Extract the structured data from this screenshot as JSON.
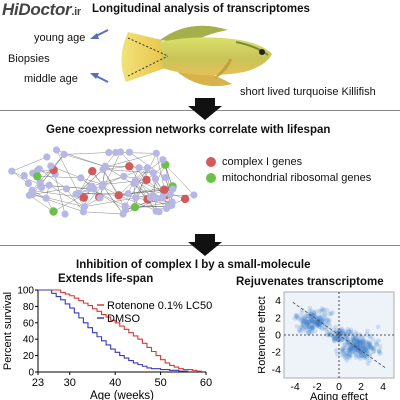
{
  "watermark": {
    "brand": "HiDoctor",
    "suffix": ".ir"
  },
  "panel1": {
    "title": "Longitudinal analysis of transcriptomes",
    "young_label": "young age",
    "biopsies_label": "Biopsies",
    "middle_label": "middle age",
    "fish_caption": "short lived turquoise Killifish"
  },
  "panel2": {
    "title": "Gene coexpression networks correlate with lifespan",
    "legend": [
      {
        "label": "complex I genes",
        "color": "#d35a5a"
      },
      {
        "label": "mitochondrial ribosomal genes",
        "color": "#6cc04a"
      }
    ],
    "node_color": "#b7b7e6"
  },
  "panel3": {
    "title": "Inhibition of complex I by a small-molecule",
    "left_title": "Extends life-span",
    "right_title": "Rejuvenates transcriptome"
  },
  "chart_data": [
    {
      "type": "line",
      "title": "Extends life-span",
      "xlabel": "Age (weeks)",
      "ylabel": "Percent survival",
      "xlim": [
        23,
        60
      ],
      "ylim": [
        0,
        100
      ],
      "x_ticks": [
        23,
        30,
        40,
        50,
        60
      ],
      "y_ticks": [
        0,
        20,
        40,
        60,
        80,
        100
      ],
      "legend_position": "right",
      "series": [
        {
          "name": "Rotenone 0.1% LC50",
          "color": "#d33a3a",
          "points": [
            [
              23,
              100
            ],
            [
              27,
              100
            ],
            [
              28,
              97
            ],
            [
              29,
              95
            ],
            [
              30,
              93
            ],
            [
              31,
              90
            ],
            [
              32,
              87
            ],
            [
              33,
              84
            ],
            [
              34,
              81
            ],
            [
              35,
              77
            ],
            [
              36,
              74
            ],
            [
              37,
              70
            ],
            [
              38,
              67
            ],
            [
              39,
              63
            ],
            [
              40,
              60
            ],
            [
              41,
              56
            ],
            [
              42,
              52
            ],
            [
              43,
              48
            ],
            [
              44,
              44
            ],
            [
              45,
              40
            ],
            [
              46,
              35
            ],
            [
              47,
              30
            ],
            [
              48,
              25
            ],
            [
              49,
              20
            ],
            [
              50,
              15
            ],
            [
              51,
              11
            ],
            [
              52,
              8
            ],
            [
              53,
              6
            ],
            [
              54,
              4
            ],
            [
              55,
              3
            ],
            [
              57,
              2
            ],
            [
              58,
              1
            ],
            [
              59,
              0
            ]
          ]
        },
        {
          "name": "DMSO",
          "color": "#3a3ab3",
          "points": [
            [
              23,
              100
            ],
            [
              25,
              100
            ],
            [
              26,
              96
            ],
            [
              27,
              92
            ],
            [
              28,
              88
            ],
            [
              29,
              83
            ],
            [
              30,
              78
            ],
            [
              31,
              72
            ],
            [
              32,
              66
            ],
            [
              33,
              60
            ],
            [
              34,
              54
            ],
            [
              35,
              48
            ],
            [
              36,
              43
            ],
            [
              37,
              38
            ],
            [
              38,
              33
            ],
            [
              39,
              28
            ],
            [
              40,
              24
            ],
            [
              41,
              20
            ],
            [
              42,
              17
            ],
            [
              43,
              14
            ],
            [
              44,
              11
            ],
            [
              45,
              9
            ],
            [
              46,
              7
            ],
            [
              47,
              5
            ],
            [
              48,
              4
            ],
            [
              50,
              3
            ],
            [
              52,
              2
            ],
            [
              54,
              1
            ],
            [
              56,
              0
            ]
          ]
        }
      ]
    },
    {
      "type": "scatter",
      "title": "Rejuvenates transcriptome",
      "xlabel": "Aging effect",
      "ylabel": "Rotenone effect",
      "xlim": [
        -5,
        5
      ],
      "ylim": [
        -5,
        5
      ],
      "x_ticks": [
        -4,
        -2,
        0,
        2,
        4
      ],
      "y_ticks": [
        -4,
        -2,
        0,
        2,
        4
      ],
      "density_color": "#3a7ac8",
      "clusters": [
        {
          "x": -2.3,
          "y": 1.6,
          "spread_x": 1.0,
          "spread_y": 0.9,
          "count": 170
        },
        {
          "x": 1.8,
          "y": -1.4,
          "spread_x": 1.3,
          "spread_y": 1.1,
          "count": 220
        },
        {
          "x": 0.2,
          "y": 0.0,
          "spread_x": 0.8,
          "spread_y": 0.6,
          "count": 70
        }
      ],
      "trendline": [
        [
          -4.2,
          3.8
        ],
        [
          4.2,
          -3.8
        ]
      ]
    }
  ]
}
